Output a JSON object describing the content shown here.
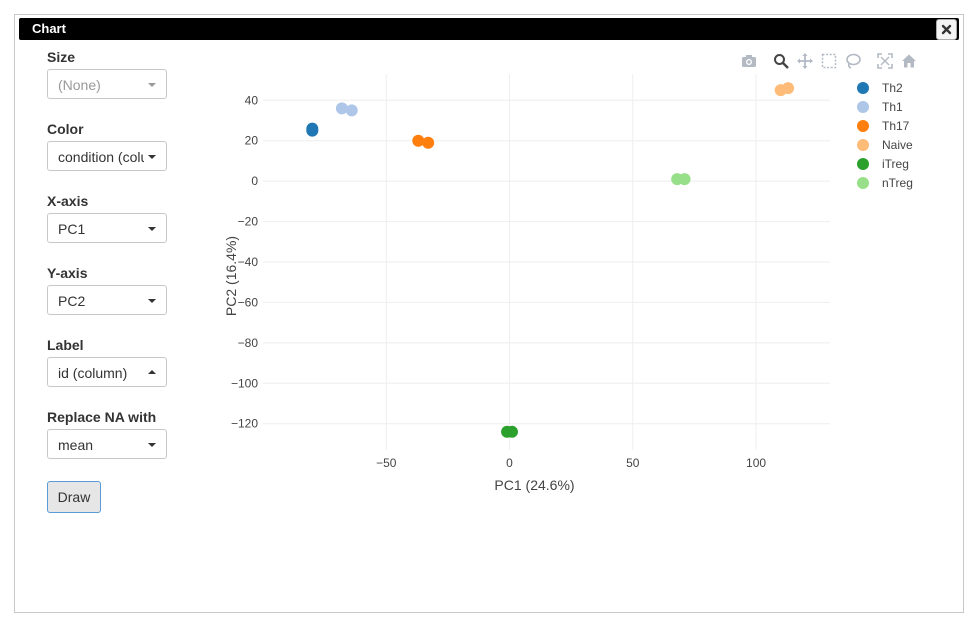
{
  "window": {
    "title": "Chart"
  },
  "controls": {
    "size": {
      "label": "Size",
      "value": "(None)"
    },
    "color": {
      "label": "Color",
      "value": "condition (column)"
    },
    "xaxis": {
      "label": "X-axis",
      "value": "PC1"
    },
    "yaxis": {
      "label": "Y-axis",
      "value": "PC2"
    },
    "label": {
      "label": "Label",
      "value": "id (column)"
    },
    "replace_na": {
      "label": "Replace NA with",
      "value": "mean"
    },
    "draw_label": "Draw"
  },
  "modebar_icons": [
    "camera-icon",
    "zoom-icon",
    "pan-icon",
    "box-select-icon",
    "lasso-select-icon",
    "autoscale-icon",
    "reset-axes-icon"
  ],
  "chart_data": {
    "type": "scatter",
    "xlabel": "PC1 (24.6%)",
    "ylabel": "PC2 (16.4%)",
    "xlim": [
      -100,
      130
    ],
    "ylim": [
      -133,
      53
    ],
    "xticks": [
      -50,
      0,
      50,
      100
    ],
    "yticks": [
      40,
      20,
      0,
      -20,
      -40,
      -60,
      -80,
      -100,
      -120
    ],
    "grid": true,
    "legend_position": "right",
    "series": [
      {
        "name": "Th2",
        "color": "#1f77b4",
        "points": [
          [
            -80,
            26
          ],
          [
            -80,
            25
          ]
        ]
      },
      {
        "name": "Th1",
        "color": "#aec7e8",
        "points": [
          [
            -68,
            36
          ],
          [
            -64,
            35
          ]
        ]
      },
      {
        "name": "Th17",
        "color": "#ff7f0e",
        "points": [
          [
            -37,
            20
          ],
          [
            -33,
            19
          ]
        ]
      },
      {
        "name": "Naive",
        "color": "#ffbb78",
        "points": [
          [
            110,
            45
          ],
          [
            113,
            46
          ]
        ]
      },
      {
        "name": "iTreg",
        "color": "#2ca02c",
        "points": [
          [
            -1,
            -124
          ],
          [
            1,
            -124
          ]
        ]
      },
      {
        "name": "nTreg",
        "color": "#98df8a",
        "points": [
          [
            68,
            1
          ],
          [
            71,
            1
          ]
        ]
      }
    ]
  }
}
